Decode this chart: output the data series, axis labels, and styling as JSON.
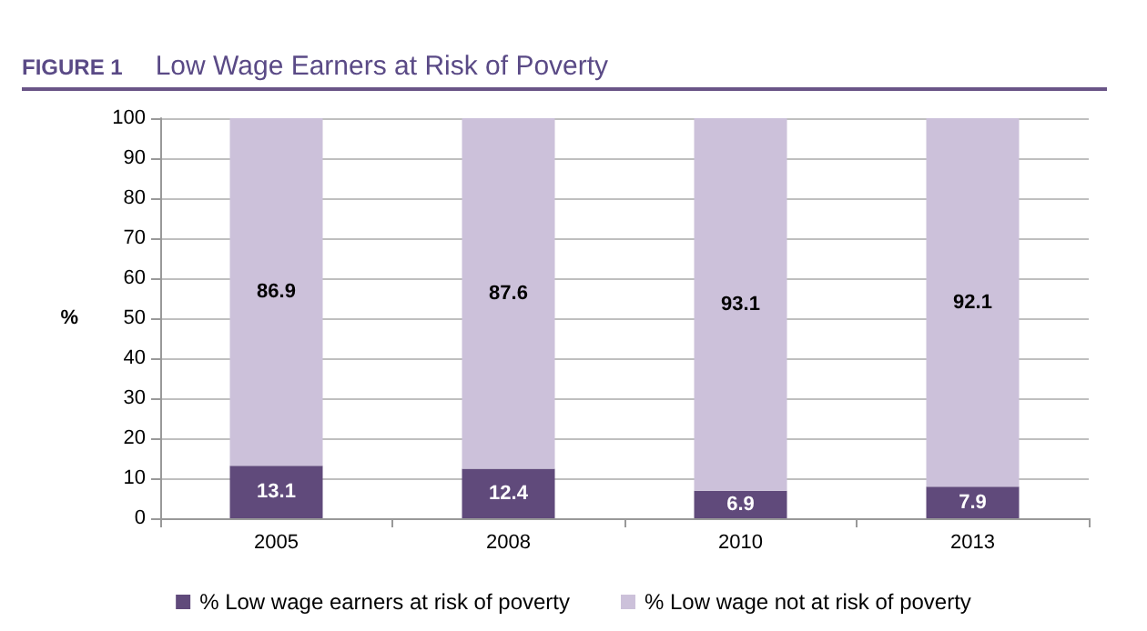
{
  "chart_data": {
    "type": "bar",
    "title": "Low Wage Earners at Risk of Poverty",
    "annotations": [
      "FIGURE 1"
    ],
    "ylabel": "%",
    "categories": [
      "2005",
      "2008",
      "2010",
      "2013"
    ],
    "series": [
      {
        "name": "% Low wage earners at risk of poverty",
        "color": "#604a7b",
        "values": [
          13.1,
          12.4,
          6.9,
          7.9
        ]
      },
      {
        "name": "% Low wage not at risk of poverty",
        "color": "#ccc1da",
        "values": [
          86.9,
          87.6,
          93.1,
          92.1
        ]
      }
    ],
    "stacked": true,
    "data_labels": true,
    "ylim": [
      0,
      100
    ],
    "yticks": [
      0,
      10,
      20,
      30,
      40,
      50,
      60,
      70,
      80,
      90,
      100
    ],
    "grid": "y",
    "legend": "bottom"
  }
}
